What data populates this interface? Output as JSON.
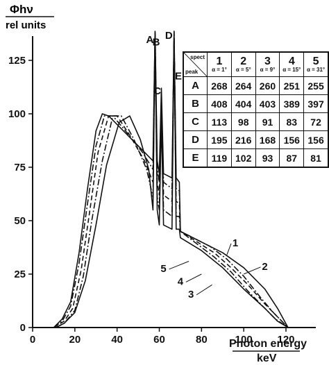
{
  "chart_data": {
    "type": "line",
    "ylabel": "Φhν",
    "ylabel_unit": "rel units",
    "xlabel": "Photon energy",
    "xlabel_unit": "keV",
    "xlim": [
      0,
      140
    ],
    "ylim": [
      0,
      140
    ],
    "xticks": [
      "0",
      "20",
      "40",
      "60",
      "80",
      "100",
      "120"
    ],
    "yticks": [
      "0",
      "25",
      "50",
      "75",
      "100",
      "125"
    ],
    "grid": false,
    "series": [
      {
        "name": "1",
        "style": "solid",
        "points": [
          [
            10,
            0
          ],
          [
            14,
            4
          ],
          [
            18,
            12
          ],
          [
            22,
            35
          ],
          [
            26,
            65
          ],
          [
            30,
            92
          ],
          [
            33,
            100
          ],
          [
            36,
            99
          ],
          [
            42,
            93
          ],
          [
            50,
            85
          ],
          [
            57,
            78
          ],
          [
            58,
            142
          ],
          [
            59,
            78
          ],
          [
            60,
            72
          ],
          [
            61,
            112
          ],
          [
            62,
            72
          ],
          [
            66,
            70
          ],
          [
            67,
            142
          ],
          [
            68,
            70
          ],
          [
            69.5,
            68
          ],
          [
            70,
            45
          ],
          [
            74,
            43
          ],
          [
            80,
            40
          ],
          [
            90,
            35
          ],
          [
            100,
            28
          ],
          [
            110,
            18
          ],
          [
            116,
            9
          ],
          [
            121,
            0
          ]
        ]
      },
      {
        "name": "2",
        "style": "dashdot",
        "points": [
          [
            10,
            0
          ],
          [
            14,
            3
          ],
          [
            18,
            10
          ],
          [
            22,
            30
          ],
          [
            26,
            58
          ],
          [
            30,
            85
          ],
          [
            34,
            99
          ],
          [
            38,
            99
          ],
          [
            44,
            92
          ],
          [
            52,
            82
          ],
          [
            57,
            74
          ],
          [
            58,
            140
          ],
          [
            59,
            74
          ],
          [
            60,
            68
          ],
          [
            61,
            108
          ],
          [
            62,
            68
          ],
          [
            66,
            65
          ],
          [
            67,
            140
          ],
          [
            68,
            65
          ],
          [
            69.5,
            64
          ],
          [
            70,
            45
          ],
          [
            76,
            42
          ],
          [
            84,
            38
          ],
          [
            92,
            32
          ],
          [
            100,
            24
          ],
          [
            108,
            14
          ],
          [
            114,
            7
          ],
          [
            121,
            0
          ]
        ]
      },
      {
        "name": "3",
        "style": "dashed",
        "points": [
          [
            10,
            0
          ],
          [
            15,
            3
          ],
          [
            19,
            9
          ],
          [
            23,
            27
          ],
          [
            27,
            54
          ],
          [
            31,
            82
          ],
          [
            36,
            99
          ],
          [
            40,
            99
          ],
          [
            46,
            90
          ],
          [
            53,
            78
          ],
          [
            57,
            68
          ],
          [
            58,
            138
          ],
          [
            59,
            68
          ],
          [
            60,
            62
          ],
          [
            61,
            104
          ],
          [
            62,
            62
          ],
          [
            66,
            59
          ],
          [
            67,
            138
          ],
          [
            68,
            59
          ],
          [
            69.5,
            58
          ],
          [
            70,
            45
          ],
          [
            78,
            40
          ],
          [
            86,
            35
          ],
          [
            94,
            28
          ],
          [
            102,
            20
          ],
          [
            110,
            11
          ],
          [
            115,
            6
          ],
          [
            121,
            0
          ]
        ]
      },
      {
        "name": "4",
        "style": "dashdot",
        "points": [
          [
            11,
            0
          ],
          [
            15,
            2
          ],
          [
            20,
            8
          ],
          [
            24,
            24
          ],
          [
            28,
            50
          ],
          [
            33,
            78
          ],
          [
            38,
            99
          ],
          [
            42,
            99
          ],
          [
            48,
            88
          ],
          [
            54,
            74
          ],
          [
            57,
            61
          ],
          [
            58,
            136
          ],
          [
            59,
            61
          ],
          [
            60,
            55
          ],
          [
            61,
            100
          ],
          [
            62,
            55
          ],
          [
            66,
            52
          ],
          [
            67,
            136
          ],
          [
            68,
            52
          ],
          [
            69.5,
            52
          ],
          [
            70,
            45
          ],
          [
            78,
            39
          ],
          [
            86,
            33
          ],
          [
            94,
            26
          ],
          [
            102,
            17
          ],
          [
            110,
            9
          ],
          [
            115,
            4
          ],
          [
            121,
            0
          ]
        ]
      },
      {
        "name": "5",
        "style": "solid",
        "points": [
          [
            11,
            0
          ],
          [
            15,
            2
          ],
          [
            20,
            7
          ],
          [
            25,
            22
          ],
          [
            30,
            48
          ],
          [
            35,
            76
          ],
          [
            41,
            96
          ],
          [
            46,
            99
          ],
          [
            51,
            88
          ],
          [
            55,
            74
          ],
          [
            57,
            55
          ],
          [
            58,
            135
          ],
          [
            59,
            55
          ],
          [
            60,
            48
          ],
          [
            61,
            98
          ],
          [
            62,
            48
          ],
          [
            66,
            46
          ],
          [
            67,
            135
          ],
          [
            68,
            46
          ],
          [
            69.5,
            46
          ],
          [
            70,
            42
          ],
          [
            80,
            36
          ],
          [
            90,
            28
          ],
          [
            100,
            18
          ],
          [
            110,
            9
          ],
          [
            116,
            3
          ],
          [
            121,
            0
          ]
        ]
      }
    ],
    "peak_labels": [
      "A",
      "B",
      "C",
      "D",
      "E"
    ],
    "table": {
      "header_top": "spect",
      "header_left": "peak",
      "columns": [
        {
          "num": "1",
          "angle": "α = 1°"
        },
        {
          "num": "2",
          "angle": "α = 5°"
        },
        {
          "num": "3",
          "angle": "α = 9°"
        },
        {
          "num": "4",
          "angle": "α = 15°"
        },
        {
          "num": "5",
          "angle": "α = 31°"
        }
      ],
      "rows": [
        {
          "peak": "A",
          "values": [
            "268",
            "264",
            "260",
            "251",
            "255"
          ]
        },
        {
          "peak": "B",
          "values": [
            "408",
            "404",
            "403",
            "389",
            "397"
          ]
        },
        {
          "peak": "C",
          "values": [
            "113",
            "98",
            "91",
            "83",
            "72"
          ]
        },
        {
          "peak": "D",
          "values": [
            "195",
            "216",
            "168",
            "156",
            "156"
          ]
        },
        {
          "peak": "E",
          "values": [
            "119",
            "102",
            "93",
            "87",
            "81"
          ]
        }
      ]
    }
  }
}
